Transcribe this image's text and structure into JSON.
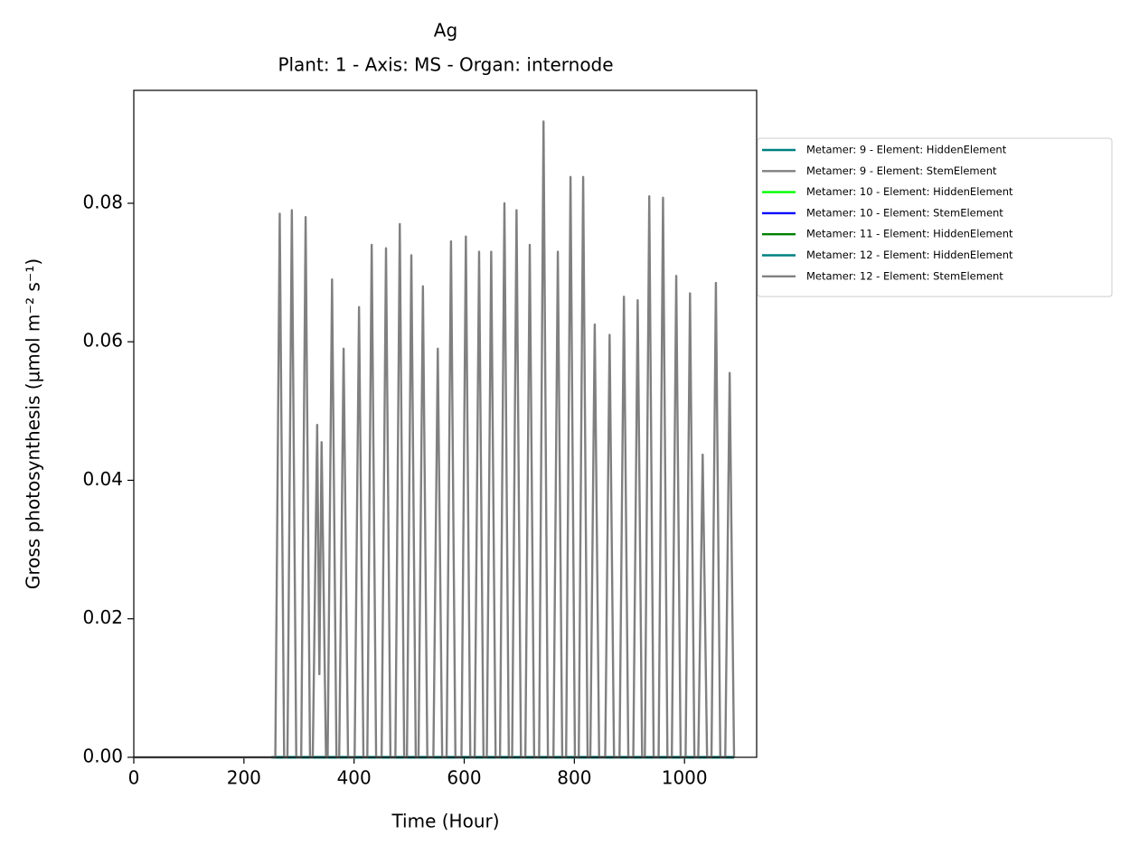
{
  "chart_data": {
    "type": "line",
    "title": "Ag",
    "subtitle": "Plant: 1 - Axis: MS - Organ: internode",
    "x_label": "Time (Hour)",
    "y_label": "Gross photosynthesis (µmol m⁻² s⁻¹)",
    "xlim": [
      0,
      1131
    ],
    "ylim": [
      0,
      0.0963
    ],
    "xticks": [
      0,
      200,
      400,
      600,
      800,
      1000
    ],
    "yticks": [
      {
        "value": 0,
        "label": "0.00"
      },
      {
        "value": 0.02,
        "label": "0.02"
      },
      {
        "value": 0.04,
        "label": "0.04"
      },
      {
        "value": 0.06,
        "label": "0.06"
      },
      {
        "value": 0.08,
        "label": "0.08"
      }
    ],
    "legend": "outside right",
    "series": [
      {
        "name": "Metamer: 9 - Element: HiddenElement",
        "color": "#008080",
        "x": [
          250,
          1090
        ],
        "values": [
          0,
          0
        ]
      },
      {
        "name": "Metamer: 9 - Element: StemElement",
        "color": "#808080",
        "x": [
          250,
          1090
        ],
        "values": [
          0,
          0
        ]
      },
      {
        "name": "Metamer: 10 - Element: HiddenElement",
        "color": "#00ff00",
        "x": [
          250,
          1090
        ],
        "values": [
          0,
          0
        ]
      },
      {
        "name": "Metamer: 10 - Element: StemElement",
        "color": "#0000ff",
        "x": [
          250,
          1090
        ],
        "values": [
          0,
          0
        ]
      },
      {
        "name": "Metamer: 11 - Element: HiddenElement",
        "color": "#008000",
        "x": [
          250,
          1090
        ],
        "values": [
          0,
          0
        ]
      },
      {
        "name": "Metamer: 12 - Element: HiddenElement",
        "color": "#008080",
        "x": [
          250,
          1090
        ],
        "values": [
          0,
          0
        ]
      },
      {
        "name": "Metamer: 12 - Element: StemElement",
        "color": "#808080",
        "x": [
          0,
          250,
          257,
          265,
          273,
          279,
          287,
          295,
          304,
          312,
          320,
          325,
          333,
          337,
          341,
          349,
          352,
          360,
          368,
          373,
          381,
          389,
          401,
          409,
          417,
          424,
          432,
          440,
          450,
          458,
          466,
          475,
          483,
          491,
          496,
          504,
          512,
          517,
          525,
          533,
          544,
          552,
          560,
          568,
          576,
          584,
          595,
          603,
          611,
          619,
          627,
          635,
          641,
          649,
          657,
          665,
          673,
          681,
          687,
          695,
          703,
          711,
          719,
          727,
          736,
          744,
          752,
          762,
          770,
          778,
          785,
          793,
          801,
          808,
          816,
          824,
          829,
          837,
          845,
          856,
          864,
          872,
          882,
          890,
          898,
          907,
          915,
          923,
          928,
          936,
          944,
          953,
          961,
          969,
          977,
          985,
          993,
          1002,
          1010,
          1018,
          1025,
          1033,
          1041,
          1049,
          1057,
          1065,
          1074,
          1082,
          1090
        ],
        "values": [
          0,
          0,
          0,
          0.0785,
          0,
          0,
          0.079,
          0,
          0,
          0.078,
          0,
          0,
          0.048,
          0.012,
          0.0455,
          0,
          0,
          0.069,
          0,
          0,
          0.059,
          0,
          0,
          0.065,
          0,
          0,
          0.074,
          0,
          0,
          0.0735,
          0,
          0,
          0.077,
          0,
          0,
          0.0725,
          0,
          0,
          0.068,
          0,
          0,
          0.059,
          0,
          0,
          0.0745,
          0,
          0,
          0.0752,
          0,
          0,
          0.073,
          0,
          0,
          0.073,
          0,
          0,
          0.08,
          0,
          0,
          0.079,
          0,
          0,
          0.074,
          0,
          0,
          0.0918,
          0,
          0,
          0.073,
          0,
          0,
          0.0838,
          0,
          0,
          0.0838,
          0,
          0,
          0.0625,
          0,
          0,
          0.061,
          0,
          0,
          0.0665,
          0,
          0,
          0.066,
          0,
          0,
          0.081,
          0,
          0,
          0.0808,
          0,
          0,
          0.0695,
          0,
          0,
          0.067,
          0,
          0,
          0.0437,
          0,
          0,
          0.0685,
          0,
          0,
          0.0555,
          0
        ]
      }
    ]
  }
}
